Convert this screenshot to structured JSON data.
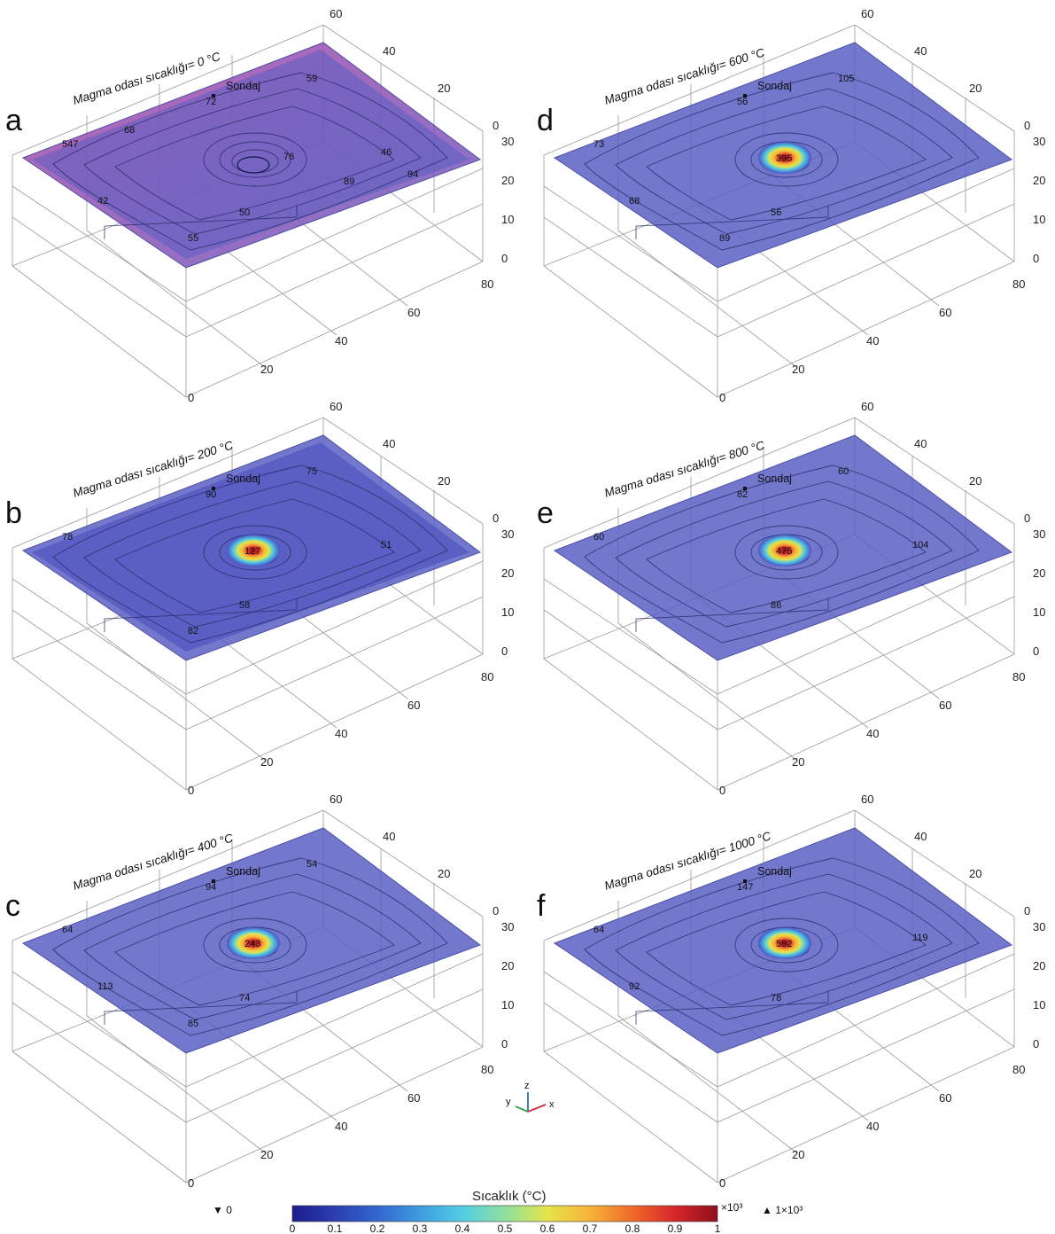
{
  "figure": {
    "panels": [
      {
        "letter": "a",
        "title": "Magma odası sıcaklığı= 0 °C",
        "probe": "Sondaj",
        "labels": [
          "547",
          "72",
          "59",
          "46",
          "42",
          "50",
          "55",
          "89",
          "68",
          "76",
          "94"
        ],
        "hotspot": ""
      },
      {
        "letter": "b",
        "title": "Magma odası sıcaklığı= 200 °C",
        "probe": "Sondaj",
        "labels": [
          "78",
          "90",
          "75",
          "51",
          "127",
          "58",
          "82"
        ],
        "hotspot": "127"
      },
      {
        "letter": "c",
        "title": "Magma odası sıcaklığı= 400 °C",
        "probe": "Sondaj",
        "labels": [
          "64",
          "94",
          "54",
          "243",
          "113",
          "74",
          "85"
        ],
        "hotspot": "243"
      },
      {
        "letter": "d",
        "title": "Magma odası sıcaklığı= 600 °C",
        "probe": "Sondaj",
        "labels": [
          "73",
          "56",
          "105",
          "395",
          "68",
          "56",
          "89"
        ],
        "hotspot": "395"
      },
      {
        "letter": "e",
        "title": "Magma odası sıcaklığı= 800 °C",
        "probe": "Sondaj",
        "labels": [
          "60",
          "82",
          "60",
          "104",
          "475",
          "86"
        ],
        "hotspot": "475"
      },
      {
        "letter": "f",
        "title": "Magma odası sıcaklığı= 1000 °C",
        "probe": "Sondaj",
        "labels": [
          "64",
          "147",
          "592",
          "119",
          "92",
          "78"
        ],
        "hotspot": "592"
      }
    ],
    "axis_ticks": {
      "top": [
        "60",
        "40",
        "20",
        "0"
      ],
      "right": [
        "30",
        "20",
        "10",
        "0"
      ],
      "bottom": [
        "80",
        "60",
        "40",
        "20",
        "0"
      ]
    },
    "triad": {
      "z": "z",
      "y": "y",
      "x": "x"
    },
    "colorbar": {
      "title": "Sıcaklık (°C)",
      "ticks": [
        "0",
        "0.1",
        "0.2",
        "0.3",
        "0.4",
        "0.5",
        "0.6",
        "0.7",
        "0.8",
        "0.9",
        "1"
      ],
      "multiplier": "×10³",
      "min_marker": "▼ 0",
      "max_marker": "▲ 1×10³",
      "colors": [
        "#1c1b8a",
        "#2b3fb0",
        "#3465cf",
        "#3f9ce0",
        "#52cde3",
        "#8fe0a0",
        "#e5e34a",
        "#f6b23a",
        "#ef6a2a",
        "#d6262a",
        "#8e0f1c"
      ]
    }
  }
}
